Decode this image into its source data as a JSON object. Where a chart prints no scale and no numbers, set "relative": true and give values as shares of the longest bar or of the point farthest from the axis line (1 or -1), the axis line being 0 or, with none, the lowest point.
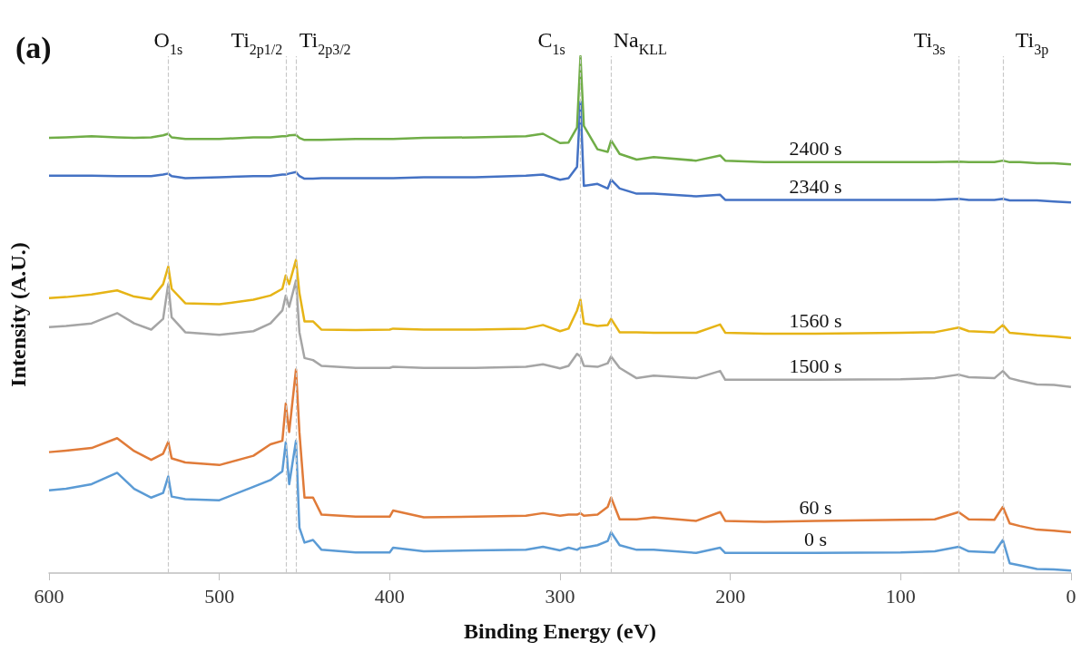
{
  "chart_data": {
    "type": "line",
    "title": "(a)",
    "xlabel": "Binding Energy (eV)",
    "ylabel": "Intensity (A.U.)",
    "relative": true,
    "x": [
      600,
      590,
      575,
      560,
      550,
      540,
      533,
      530,
      528,
      520,
      500,
      480,
      470,
      463,
      461,
      459,
      455,
      453,
      450,
      445,
      440,
      420,
      400,
      398,
      380,
      350,
      320,
      310,
      300,
      295,
      290,
      288,
      286,
      278,
      272,
      270,
      265,
      255,
      245,
      220,
      206,
      203,
      180,
      150,
      100,
      80,
      66,
      60,
      45,
      40,
      36,
      30,
      20,
      10,
      0
    ],
    "xlim": [
      600,
      0
    ],
    "xticks": [
      600,
      500,
      400,
      300,
      200,
      100,
      0
    ],
    "grid": false,
    "legend": false,
    "marker": "none",
    "line_style": "solid",
    "series": [
      {
        "name": "2400 s",
        "color": "#70ad47",
        "values": [
          0.842,
          0.843,
          0.845,
          0.843,
          0.842,
          0.843,
          0.847,
          0.85,
          0.843,
          0.84,
          0.84,
          0.843,
          0.843,
          0.845,
          0.845,
          0.847,
          0.848,
          0.842,
          0.838,
          0.838,
          0.838,
          0.84,
          0.84,
          0.84,
          0.842,
          0.843,
          0.845,
          0.85,
          0.832,
          0.833,
          0.862,
          1,
          0.865,
          0.82,
          0.815,
          0.837,
          0.811,
          0.8,
          0.805,
          0.798,
          0.808,
          0.798,
          0.795,
          0.795,
          0.795,
          0.795,
          0.796,
          0.795,
          0.795,
          0.798,
          0.795,
          0.795,
          0.793,
          0.793,
          0.791
        ]
      },
      {
        "name": "2340 s",
        "color": "#4472c4",
        "values": [
          0.769,
          0.769,
          0.769,
          0.768,
          0.768,
          0.768,
          0.771,
          0.773,
          0.768,
          0.764,
          0.766,
          0.768,
          0.768,
          0.771,
          0.771,
          0.773,
          0.776,
          0.768,
          0.763,
          0.763,
          0.764,
          0.764,
          0.764,
          0.764,
          0.766,
          0.766,
          0.769,
          0.771,
          0.761,
          0.764,
          0.786,
          0.912,
          0.749,
          0.753,
          0.744,
          0.761,
          0.744,
          0.734,
          0.734,
          0.729,
          0.732,
          0.722,
          0.722,
          0.722,
          0.722,
          0.722,
          0.724,
          0.722,
          0.722,
          0.724,
          0.721,
          0.721,
          0.721,
          0.719,
          0.717
        ]
      },
      {
        "name": "1560 s",
        "color": "#e6b416",
        "values": [
          0.532,
          0.534,
          0.539,
          0.547,
          0.535,
          0.53,
          0.559,
          0.593,
          0.55,
          0.522,
          0.52,
          0.529,
          0.537,
          0.55,
          0.576,
          0.559,
          0.606,
          0.542,
          0.487,
          0.487,
          0.471,
          0.47,
          0.471,
          0.473,
          0.471,
          0.471,
          0.473,
          0.48,
          0.468,
          0.473,
          0.508,
          0.529,
          0.483,
          0.478,
          0.48,
          0.492,
          0.466,
          0.466,
          0.465,
          0.465,
          0.481,
          0.465,
          0.463,
          0.463,
          0.465,
          0.466,
          0.475,
          0.468,
          0.466,
          0.48,
          0.465,
          0.463,
          0.46,
          0.458,
          0.455
        ]
      },
      {
        "name": "1500 s",
        "color": "#a5a5a5",
        "values": [
          0.476,
          0.478,
          0.483,
          0.503,
          0.483,
          0.471,
          0.492,
          0.559,
          0.495,
          0.466,
          0.461,
          0.468,
          0.483,
          0.508,
          0.537,
          0.515,
          0.566,
          0.466,
          0.416,
          0.412,
          0.401,
          0.397,
          0.397,
          0.399,
          0.397,
          0.397,
          0.399,
          0.404,
          0.396,
          0.401,
          0.424,
          0.419,
          0.401,
          0.399,
          0.406,
          0.419,
          0.397,
          0.377,
          0.382,
          0.377,
          0.391,
          0.374,
          0.374,
          0.374,
          0.375,
          0.377,
          0.384,
          0.379,
          0.377,
          0.391,
          0.377,
          0.372,
          0.365,
          0.364,
          0.36
        ]
      },
      {
        "name": "60 s",
        "color": "#e07b39",
        "values": [
          0.234,
          0.237,
          0.242,
          0.261,
          0.236,
          0.219,
          0.231,
          0.254,
          0.222,
          0.214,
          0.209,
          0.227,
          0.249,
          0.256,
          0.328,
          0.273,
          0.394,
          0.273,
          0.146,
          0.146,
          0.113,
          0.109,
          0.109,
          0.121,
          0.108,
          0.109,
          0.111,
          0.116,
          0.111,
          0.113,
          0.113,
          0.116,
          0.111,
          0.113,
          0.128,
          0.146,
          0.104,
          0.104,
          0.108,
          0.101,
          0.118,
          0.101,
          0.099,
          0.101,
          0.103,
          0.104,
          0.118,
          0.104,
          0.103,
          0.128,
          0.096,
          0.091,
          0.084,
          0.082,
          0.079
        ]
      },
      {
        "name": "0 s",
        "color": "#5b9bd5",
        "values": [
          0.16,
          0.163,
          0.172,
          0.194,
          0.163,
          0.146,
          0.155,
          0.187,
          0.148,
          0.143,
          0.141,
          0.167,
          0.18,
          0.197,
          0.253,
          0.172,
          0.256,
          0.088,
          0.059,
          0.064,
          0.045,
          0.04,
          0.04,
          0.049,
          0.042,
          0.044,
          0.045,
          0.051,
          0.044,
          0.049,
          0.045,
          0.049,
          0.049,
          0.054,
          0.062,
          0.079,
          0.054,
          0.045,
          0.045,
          0.039,
          0.049,
          0.039,
          0.039,
          0.039,
          0.04,
          0.042,
          0.051,
          0.042,
          0.04,
          0.064,
          0.019,
          0.015,
          0.008,
          0.007,
          0.005
        ]
      }
    ],
    "ref_lines": [
      {
        "axis": "x",
        "value": 530,
        "label": "O$_{1s}$",
        "color": "#c8c8c8",
        "line_style": "dashed"
      },
      {
        "axis": "x",
        "value": 461,
        "label": "Ti$_{2p1/2}$",
        "color": "#c8c8c8",
        "line_style": "dashed"
      },
      {
        "axis": "x",
        "value": 455,
        "label": "Ti$_{2p3/2}$",
        "color": "#c8c8c8",
        "line_style": "dashed"
      },
      {
        "axis": "x",
        "value": 288,
        "label": "C$_{1s}$",
        "color": "#c8c8c8",
        "line_style": "dashed"
      },
      {
        "axis": "x",
        "value": 270,
        "label": "Na$_{KLL}$",
        "color": "#c8c8c8",
        "line_style": "dashed"
      },
      {
        "axis": "x",
        "value": 66,
        "label": "Ti$_{3s}$",
        "color": "#c8c8c8",
        "line_style": "dashed"
      },
      {
        "axis": "x",
        "value": 40,
        "label": "Ti$_{3p}$",
        "color": "#c8c8c8",
        "line_style": "dashed"
      }
    ]
  }
}
